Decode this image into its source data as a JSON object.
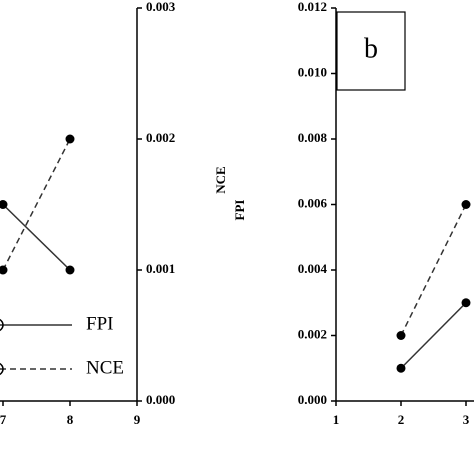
{
  "chart_data": [
    {
      "type": "line",
      "x": [
        7,
        8
      ],
      "xlim": [
        7,
        9
      ],
      "xticks": [
        7,
        8,
        9
      ],
      "y_label": "NCE",
      "ylim": [
        0,
        0.003
      ],
      "yticks": [
        {
          "value": 0,
          "label": "0.000"
        },
        0.001,
        0.002,
        0.003
      ],
      "series": [
        {
          "name": "FPI",
          "color": "#333333",
          "dash": false,
          "values": [
            0.0015,
            0.001
          ]
        },
        {
          "name": "NCE",
          "color": "#333333",
          "dash": true,
          "values": [
            0.001,
            0.002
          ]
        }
      ]
    },
    {
      "type": "line",
      "panel_label": "b",
      "x": [
        2,
        3
      ],
      "xlim": [
        1,
        3
      ],
      "xticks": [
        1,
        2,
        3
      ],
      "y_label": "FPI",
      "ylim": [
        0,
        0.012
      ],
      "yticks": [
        {
          "value": 0,
          "label": "0.000"
        },
        0.002,
        0.004,
        0.006,
        0.008,
        {
          "value": 0.01,
          "label": "0.010"
        },
        0.012
      ],
      "series": [
        {
          "name": "FPI",
          "color": "#333333",
          "dash": false,
          "values": [
            0.001,
            0.003
          ]
        },
        {
          "name": "NCE",
          "color": "#333333",
          "dash": true,
          "values": [
            0.002,
            0.006
          ]
        }
      ]
    }
  ]
}
